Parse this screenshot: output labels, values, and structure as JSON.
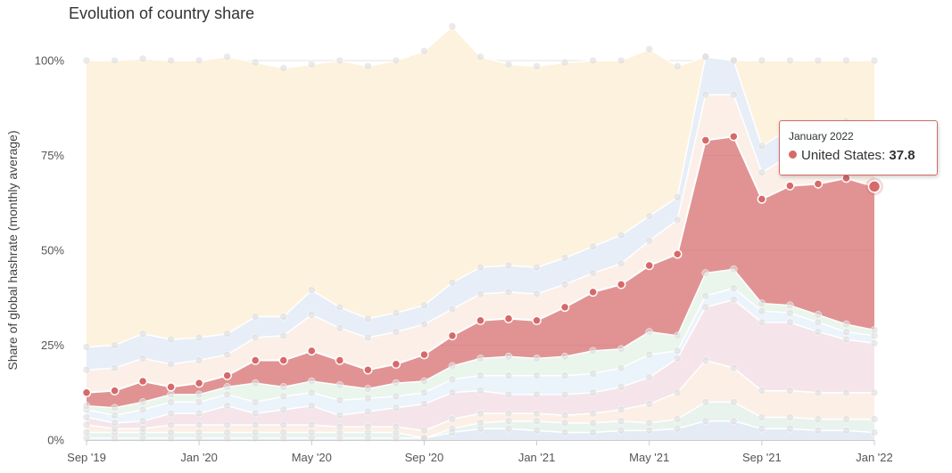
{
  "title": "Evolution of country share",
  "tooltip": {
    "date": "January 2022",
    "series": "United States",
    "value": "37.8",
    "color": "#d66a6a"
  },
  "chart_data": {
    "type": "area",
    "stacked": true,
    "title": "Evolution of country share",
    "xlabel": "",
    "ylabel": "Share of global hashrate (monthly average)",
    "ylim": [
      0,
      100
    ],
    "y_ticks": [
      "0%",
      "25%",
      "50%",
      "75%",
      "100%"
    ],
    "x_ticks": [
      "Sep '19",
      "Jan '20",
      "May '20",
      "Sep '20",
      "Jan '21",
      "May '21",
      "Sep '21",
      "Jan '22"
    ],
    "x_tick_index": [
      0,
      4,
      8,
      12,
      16,
      20,
      24,
      28
    ],
    "grid": "horizontal",
    "highlight": {
      "index": 28,
      "series": "United States",
      "value": 37.8
    },
    "x": [
      "2019-09",
      "2019-10",
      "2019-11",
      "2019-12",
      "2020-01",
      "2020-02",
      "2020-03",
      "2020-04",
      "2020-05",
      "2020-06",
      "2020-07",
      "2020-08",
      "2020-09",
      "2020-10",
      "2020-11",
      "2020-12",
      "2021-01",
      "2021-02",
      "2021-03",
      "2021-04",
      "2021-05",
      "2021-06",
      "2021-07",
      "2021-08",
      "2021-09",
      "2021-10",
      "2021-11",
      "2021-12",
      "2022-01"
    ],
    "series": [
      {
        "values": [
          0.5,
          0.5,
          0.5,
          0.5,
          0.5,
          0.5,
          0.5,
          0.5,
          0.5,
          0.5,
          0.5,
          0.5,
          0.5,
          2.0,
          3.0,
          3.0,
          2.5,
          2.0,
          2.0,
          2.5,
          2.5,
          3.0,
          5.0,
          5.0,
          3.0,
          3.0,
          2.5,
          2.5,
          2.0
        ],
        "color": "#e5ebf5"
      },
      {
        "values": [
          1.5,
          1.5,
          1.5,
          1.5,
          1.5,
          1.5,
          1.5,
          1.5,
          1.5,
          1.5,
          1.5,
          1.5,
          0.0,
          1.0,
          1.5,
          2.0,
          2.5,
          2.5,
          2.5,
          2.5,
          2.0,
          2.5,
          5.0,
          5.0,
          3.0,
          3.0,
          3.0,
          3.0,
          3.5
        ],
        "color": "#e8f3ee"
      },
      {
        "values": [
          2.0,
          1.0,
          1.0,
          2.0,
          2.0,
          2.0,
          2.0,
          2.0,
          2.0,
          1.5,
          1.5,
          1.5,
          2.0,
          2.5,
          2.5,
          2.0,
          2.0,
          2.0,
          2.5,
          3.0,
          5.0,
          7.0,
          11.0,
          9.0,
          7.0,
          7.0,
          7.0,
          7.0,
          7.0
        ],
        "color": "#fcefe6"
      },
      {
        "values": [
          2.0,
          1.5,
          2.0,
          3.0,
          3.0,
          5.0,
          3.0,
          4.0,
          5.0,
          3.0,
          4.0,
          5.0,
          7.0,
          7.0,
          6.0,
          5.0,
          5.0,
          5.5,
          5.5,
          6.0,
          7.0,
          9.0,
          14.0,
          18.0,
          18.0,
          18.0,
          16.0,
          14.0,
          13.0
        ],
        "color": "#f5e5ea"
      },
      {
        "values": [
          2.0,
          2.0,
          3.0,
          3.0,
          3.0,
          3.0,
          3.0,
          3.5,
          3.5,
          4.0,
          3.5,
          3.0,
          3.0,
          3.5,
          4.0,
          5.0,
          5.0,
          5.0,
          5.0,
          5.0,
          6.0,
          2.0,
          3.0,
          3.0,
          3.0,
          2.5,
          2.5,
          2.0,
          2.0
        ],
        "color": "#ebf3fb"
      },
      {
        "values": [
          1.0,
          2.0,
          2.0,
          2.0,
          2.0,
          2.0,
          5.0,
          2.5,
          3.0,
          4.0,
          2.5,
          3.5,
          3.0,
          3.5,
          4.5,
          5.0,
          4.5,
          5.0,
          6.0,
          5.0,
          6.0,
          4.0,
          6.0,
          5.0,
          2.0,
          2.0,
          2.0,
          2.0,
          1.5
        ],
        "color": "#eaf5ec"
      },
      {
        "values": [
          3.5,
          4.5,
          5.5,
          2.0,
          3.0,
          3.0,
          6.0,
          7.0,
          8.0,
          6.5,
          5.0,
          5.0,
          7.0,
          8.0,
          10.0,
          10.0,
          10.0,
          13.0,
          15.5,
          17.0,
          17.5,
          21.5,
          35.0,
          35.0,
          27.5,
          31.5,
          34.5,
          38.5,
          37.8
        ],
        "color": "#d66a6a",
        "name": "United States"
      },
      {
        "values": [
          6.0,
          6.0,
          6.0,
          6.0,
          6.0,
          5.5,
          6.0,
          6.5,
          9.5,
          8.5,
          8.5,
          8.5,
          8.0,
          7.0,
          7.0,
          7.0,
          7.0,
          6.0,
          5.0,
          5.5,
          6.5,
          9.0,
          12.0,
          11.0,
          7.0,
          8.0,
          8.0,
          8.0,
          8.0
        ],
        "color": "#fbefe8"
      },
      {
        "values": [
          6.0,
          6.0,
          6.5,
          6.5,
          6.0,
          5.5,
          5.5,
          5.0,
          6.5,
          5.5,
          5.0,
          5.0,
          5.0,
          7.0,
          7.0,
          7.0,
          7.0,
          7.0,
          7.0,
          7.5,
          6.5,
          6.0,
          10.0,
          9.0,
          7.0,
          7.0,
          7.0,
          7.0,
          7.0
        ],
        "color": "#e7eef8"
      },
      {
        "values": [
          75.5,
          75.0,
          72.5,
          73.5,
          73.0,
          73.0,
          67.0,
          65.5,
          59.5,
          65.0,
          66.5,
          66.5,
          67.0,
          67.5,
          55.5,
          53.0,
          53.0,
          51.5,
          49.0,
          46.0,
          44.0,
          34.5,
          0.0,
          0.0,
          22.5,
          18.0,
          17.5,
          16.0,
          18.2
        ],
        "color": "#fdf2dd"
      }
    ]
  }
}
